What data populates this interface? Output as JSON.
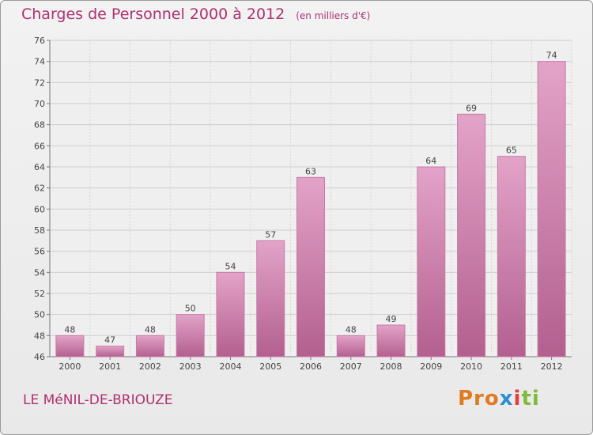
{
  "chart_data": {
    "type": "bar",
    "title": "Charges de Personnel 2000 à 2012",
    "subtitle": "(en milliers d'€)",
    "categories": [
      "2000",
      "2001",
      "2002",
      "2003",
      "2004",
      "2005",
      "2006",
      "2007",
      "2008",
      "2009",
      "2010",
      "2011",
      "2012"
    ],
    "values": [
      48,
      47,
      48,
      50,
      54,
      57,
      63,
      48,
      49,
      64,
      69,
      65,
      74
    ],
    "ylim": [
      46,
      76
    ],
    "yticks": [
      46,
      48,
      50,
      52,
      54,
      56,
      58,
      60,
      62,
      64,
      66,
      68,
      70,
      72,
      74,
      76
    ],
    "grid": true,
    "bar_color": "#c86aa0"
  },
  "footer": {
    "place": "LE MéNIL-DE-BRIOUZE",
    "logo": [
      "Pro",
      "x",
      "i",
      "ti"
    ]
  }
}
